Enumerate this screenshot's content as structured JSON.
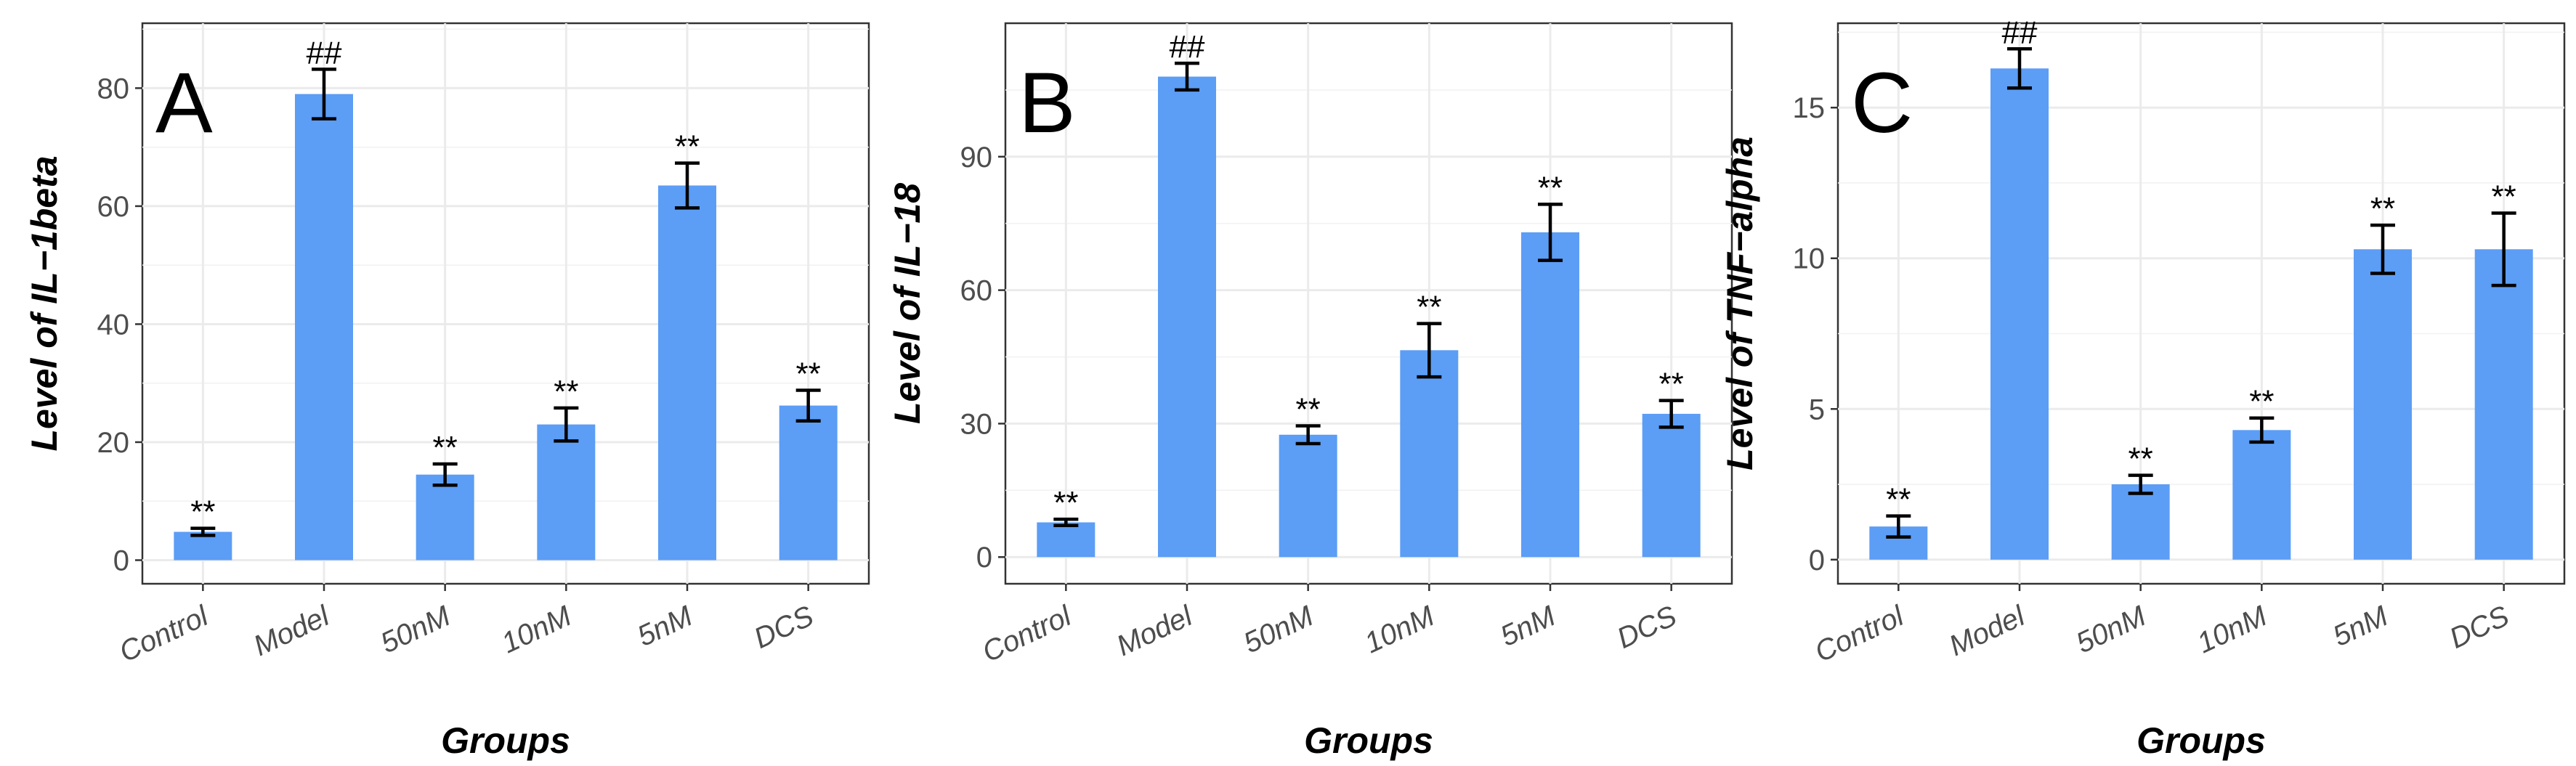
{
  "chart_data": [
    {
      "type": "bar",
      "panel_label": "A",
      "categories": [
        "Control",
        "Model",
        "50nM",
        "10nM",
        "5nM",
        "DCS"
      ],
      "values": [
        4.8,
        79,
        14.5,
        23,
        63.5,
        26.2
      ],
      "errors": [
        0.6,
        4.2,
        1.8,
        2.8,
        3.8,
        2.6
      ],
      "annotations": [
        "**",
        "##",
        "**",
        "**",
        "**",
        "**"
      ],
      "ylabel": "Level of IL−1beta",
      "xlabel": "Groups",
      "ylim": [
        -4,
        91
      ],
      "yticks": [
        0,
        20,
        40,
        60,
        80
      ],
      "ytick_labels": [
        "0",
        "20",
        "40",
        "60",
        "80"
      ],
      "grid": true,
      "color": "#5c9df5"
    },
    {
      "type": "bar",
      "panel_label": "B",
      "categories": [
        "Control",
        "Model",
        "50nM",
        "10nM",
        "5nM",
        "DCS"
      ],
      "values": [
        7.8,
        108,
        27.5,
        46.5,
        73,
        32.2
      ],
      "errors": [
        0.7,
        3,
        2,
        6,
        6.3,
        3
      ],
      "annotations": [
        "**",
        "##",
        "**",
        "**",
        "**",
        "**"
      ],
      "ylabel": "Level of IL−18",
      "xlabel": "Groups",
      "ylim": [
        -6,
        120
      ],
      "yticks": [
        0,
        30,
        60,
        90
      ],
      "ytick_labels": [
        "0",
        "30",
        "60",
        "90"
      ],
      "grid": true,
      "color": "#5c9df5"
    },
    {
      "type": "bar",
      "panel_label": "C",
      "categories": [
        "Control",
        "Model",
        "50nM",
        "10nM",
        "5nM",
        "DCS"
      ],
      "values": [
        1.1,
        16.3,
        2.5,
        4.3,
        10.3,
        10.3
      ],
      "errors": [
        0.35,
        0.65,
        0.3,
        0.4,
        0.8,
        1.2
      ],
      "annotations": [
        "**",
        "##",
        "**",
        "**",
        "**",
        "**"
      ],
      "ylabel": "Level of TNF−alpha",
      "xlabel": "Groups",
      "ylim": [
        -0.8,
        17.8
      ],
      "yticks": [
        0,
        5,
        10,
        15
      ],
      "ytick_labels": [
        "0",
        "5",
        "10",
        "15"
      ],
      "grid": true,
      "color": "#5c9df5"
    }
  ]
}
